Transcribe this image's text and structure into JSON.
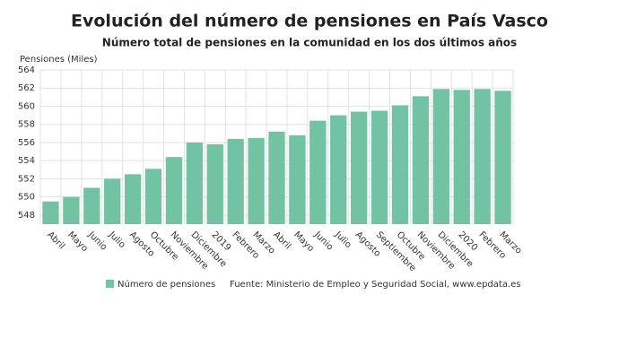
{
  "chart_data": {
    "type": "bar",
    "title": "Evolución del número de pensiones en País Vasco",
    "subtitle": "Número total de pensiones en la comunidad en los dos últimos años",
    "y_label": "Pensiones (Miles)",
    "source": "Fuente: Ministerio de Empleo y Seguridad Social, www.epdata.es",
    "categories": [
      "Abril",
      "Mayo",
      "Junio",
      "Julio",
      "Agosto",
      "Octubre",
      "Noviembre",
      "Diciembre",
      "2019",
      "Febrero",
      "Marzo",
      "Abril",
      "Mayo",
      "Junio",
      "Julio",
      "Agosto",
      "Septiembre",
      "Octubre",
      "Noviembre",
      "Diciembre",
      "2020",
      "Febrero",
      "Marzo"
    ],
    "series": [
      {
        "name": "Número de pensiones",
        "color": "#72c2a4",
        "values": [
          549.5,
          550.0,
          551.0,
          552.0,
          552.5,
          553.1,
          554.4,
          556.0,
          555.8,
          556.4,
          556.5,
          557.2,
          556.8,
          558.4,
          559.0,
          559.4,
          559.5,
          560.1,
          561.1,
          561.9,
          561.8,
          561.9,
          561.7
        ]
      }
    ],
    "ylim": [
      547,
      564
    ],
    "yticks": [
      548,
      550,
      552,
      554,
      556,
      558,
      560,
      562,
      564
    ],
    "grid": true
  }
}
